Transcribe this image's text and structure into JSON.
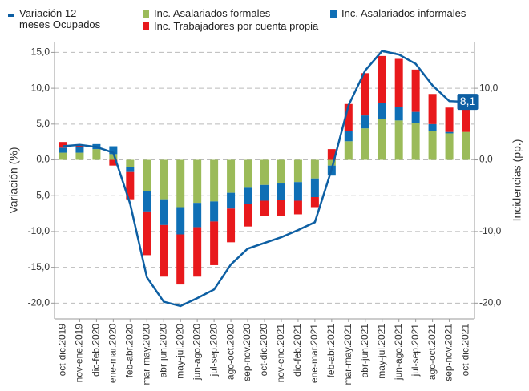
{
  "chart_data": {
    "type": "bar",
    "categories": [
      "oct-dic.2019",
      "nov-ene.2019",
      "dic-feb.2020",
      "ene-mar.2020",
      "feb-abr.2020",
      "mar-may.2020",
      "abr-jun.2020",
      "may-jul.2020",
      "jun-ago.2020",
      "jul-sep.2020",
      "ago-oct.2020",
      "sep-nov.2020",
      "oct-dic.2020",
      "nov-ene.2021",
      "dic-feb.2021",
      "ene-mar.2021",
      "feb-abr.2021",
      "mar-may.2021",
      "abr-jun.2021",
      "may-jul.2021",
      "jun-ago.2021",
      "jul-sep.2021",
      "ago-oct.2021",
      "sep-nov.2021",
      "oct-dic.2021"
    ],
    "series": [
      {
        "name": "Inc. Asalariados formales",
        "type": "bar",
        "axis": "y2",
        "color": "#9bbb59",
        "values": [
          1.0,
          1.0,
          1.5,
          0.8,
          -1.0,
          -4.4,
          -5.5,
          -6.6,
          -6.0,
          -5.8,
          -4.6,
          -3.9,
          -3.5,
          -3.3,
          -3.1,
          -2.6,
          -0.8,
          2.6,
          4.4,
          5.7,
          5.5,
          5.1,
          4.0,
          3.7,
          3.9
        ]
      },
      {
        "name": "Inc. Asalariados informales",
        "type": "bar",
        "axis": "y2",
        "color": "#0f6fb5",
        "values": [
          0.7,
          0.8,
          0.7,
          1.1,
          -0.7,
          -2.8,
          -3.6,
          -3.8,
          -3.4,
          -2.8,
          -2.2,
          -2.2,
          -2.2,
          -2.3,
          -2.6,
          -2.6,
          -1.4,
          1.4,
          1.8,
          2.3,
          1.9,
          1.6,
          1.0,
          0.2,
          0.0
        ]
      },
      {
        "name": "Inc. Trabajadores por cuenta propia",
        "type": "bar",
        "axis": "y2",
        "color": "#e8191c",
        "values": [
          0.8,
          0.3,
          0.0,
          -0.8,
          -3.8,
          -6.1,
          -7.2,
          -7.0,
          -6.9,
          -6.1,
          -4.7,
          -3.2,
          -2.1,
          -2.2,
          -1.9,
          -1.4,
          1.5,
          3.8,
          5.9,
          6.5,
          6.7,
          5.9,
          4.2,
          3.4,
          3.3
        ]
      },
      {
        "name": "Variación 12 meses Ocupados",
        "type": "line",
        "color": "#0d5fa3",
        "values": [
          1.9,
          2.1,
          1.8,
          1.0,
          -6.1,
          -16.4,
          -19.8,
          -20.4,
          -19.3,
          -18.1,
          -14.6,
          -12.4,
          -11.6,
          -10.8,
          -9.8,
          -8.7,
          -1.3,
          7.6,
          12.5,
          15.2,
          14.7,
          13.4,
          10.4,
          8.2,
          8.1
        ],
        "value_labels": [
          null,
          null,
          null,
          null,
          null,
          null,
          null,
          null,
          null,
          null,
          null,
          null,
          null,
          null,
          null,
          null,
          null,
          null,
          null,
          null,
          null,
          null,
          null,
          null,
          "8,1"
        ]
      }
    ],
    "ylabel": "Variación (%)",
    "y2label": "Incidencias (pp.)",
    "ylim": [
      -22.2,
      16.5
    ],
    "yticks": [
      {
        "value": -20,
        "label": "-20,0"
      },
      {
        "value": -15,
        "label": "-15,0"
      },
      {
        "value": -10,
        "label": "-10,0"
      },
      {
        "value": -5,
        "label": "-5,0"
      },
      {
        "value": 0,
        "label": "0,0"
      },
      {
        "value": 5,
        "label": "5,0"
      },
      {
        "value": 10,
        "label": "10,0"
      },
      {
        "value": 15,
        "label": "15,0"
      }
    ],
    "y2lim": [
      -22.2,
      16.5
    ],
    "y2ticks": [
      {
        "value": -20,
        "label": "-20,0"
      },
      {
        "value": -10,
        "label": "-10,0"
      },
      {
        "value": 0,
        "label": "0,0"
      },
      {
        "value": 10,
        "label": "10,0"
      }
    ],
    "grid": true
  }
}
